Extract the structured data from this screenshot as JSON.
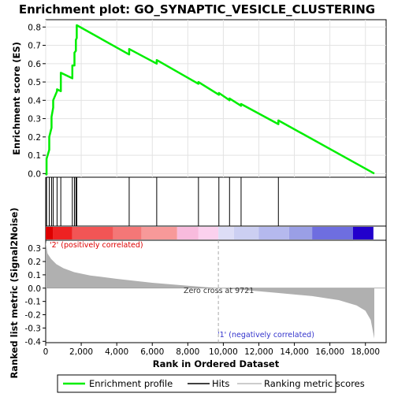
{
  "chart_data": {
    "type": "line",
    "title": "Enrichment plot: GO_SYNAPTIC_VESICLE_CLUSTERING",
    "xlabel": "Rank in Ordered Dataset",
    "ylabel_top": "Enrichment score (ES)",
    "ylabel_bottom": "Ranked list metric (Signal2Noise)",
    "x_range": [
      0,
      18500
    ],
    "es_ylim": [
      -0.02,
      0.84
    ],
    "metric_ylim": [
      -0.41,
      0.36
    ],
    "x_ticks": [
      0,
      2000,
      4000,
      6000,
      8000,
      10000,
      12000,
      14000,
      16000,
      18000
    ],
    "x_tick_labels": [
      "0",
      "2,000",
      "4,000",
      "6,000",
      "8,000",
      "10,000",
      "12,000",
      "14,000",
      "16,000",
      "18,000"
    ],
    "es_ticks": [
      0.0,
      0.1,
      0.2,
      0.3,
      0.4,
      0.5,
      0.6,
      0.7,
      0.8
    ],
    "es_tick_labels": [
      "0.0",
      "0.1",
      "0.2",
      "0.3",
      "0.4",
      "0.5",
      "0.6",
      "0.7",
      "0.8"
    ],
    "metric_ticks": [
      -0.4,
      -0.3,
      -0.2,
      -0.1,
      0.0,
      0.1,
      0.2,
      0.3
    ],
    "metric_tick_labels": [
      "-0.4",
      "-0.3",
      "-0.2",
      "-0.1",
      "0.0",
      "0.1",
      "0.2",
      "0.3"
    ],
    "hits": [
      50,
      200,
      330,
      420,
      640,
      850,
      1500,
      1620,
      1700,
      1750,
      4700,
      6250,
      8600,
      9750,
      10350,
      11000,
      13100
    ],
    "es_profile": {
      "x": [
        0,
        50,
        50,
        200,
        200,
        330,
        330,
        420,
        420,
        640,
        640,
        850,
        850,
        1500,
        1500,
        1620,
        1620,
        1700,
        1700,
        1750,
        1750,
        4700,
        4700,
        6250,
        6250,
        8600,
        8600,
        9750,
        9750,
        10350,
        10350,
        11000,
        11000,
        13100,
        13100,
        18500
      ],
      "y": [
        0.0,
        -0.005,
        0.08,
        0.13,
        0.2,
        0.25,
        0.31,
        0.36,
        0.4,
        0.45,
        0.46,
        0.45,
        0.55,
        0.52,
        0.59,
        0.59,
        0.66,
        0.67,
        0.73,
        0.74,
        0.81,
        0.65,
        0.68,
        0.6,
        0.62,
        0.49,
        0.5,
        0.43,
        0.44,
        0.4,
        0.41,
        0.37,
        0.38,
        0.27,
        0.29,
        0.0
      ]
    },
    "metric_curve": {
      "x": [
        0,
        100,
        300,
        600,
        1000,
        1600,
        2500,
        4000,
        6000,
        8000,
        9721,
        11000,
        13000,
        15000,
        16500,
        17500,
        18000,
        18300,
        18500
      ],
      "y": [
        0.35,
        0.26,
        0.22,
        0.18,
        0.15,
        0.12,
        0.095,
        0.07,
        0.04,
        0.018,
        0.0,
        -0.012,
        -0.035,
        -0.06,
        -0.09,
        -0.13,
        -0.17,
        -0.24,
        -0.38
      ]
    },
    "zero_cross": 9721,
    "zero_cross_label": "Zero cross at 9721",
    "pos_label": "'2' (positively correlated)",
    "neg_label": "'1' (negatively correlated)",
    "heatmap_segments": [
      {
        "x0": 0,
        "x1": 400,
        "color": "#dd0000"
      },
      {
        "x0": 400,
        "x1": 1500,
        "color": "#ee2222"
      },
      {
        "x0": 1500,
        "x1": 3800,
        "color": "#f25555"
      },
      {
        "x0": 3800,
        "x1": 5400,
        "color": "#f47777"
      },
      {
        "x0": 5400,
        "x1": 7400,
        "color": "#f79999"
      },
      {
        "x0": 7400,
        "x1": 8600,
        "color": "#f8bbdd"
      },
      {
        "x0": 8600,
        "x1": 9721,
        "color": "#fbd1ee"
      },
      {
        "x0": 9721,
        "x1": 10600,
        "color": "#ddddf6"
      },
      {
        "x0": 10600,
        "x1": 12000,
        "color": "#cccff2"
      },
      {
        "x0": 12000,
        "x1": 13700,
        "color": "#b5b9ee"
      },
      {
        "x0": 13700,
        "x1": 15000,
        "color": "#9a9fe6"
      },
      {
        "x0": 15000,
        "x1": 17300,
        "color": "#6e6ee0"
      },
      {
        "x0": 17300,
        "x1": 18450,
        "color": "#2200cc"
      }
    ],
    "legend": {
      "position": "bottom",
      "entries": [
        {
          "label": "Enrichment profile",
          "color": "#00ee00"
        },
        {
          "label": "Hits",
          "color": "#000000"
        },
        {
          "label": "Ranking metric scores",
          "color": "#bbbbbb"
        }
      ]
    },
    "colors": {
      "es_line": "#00ee00",
      "metric_fill": "#b0b0b0",
      "pos_label": "#dd0000",
      "neg_label": "#3333cc"
    }
  }
}
